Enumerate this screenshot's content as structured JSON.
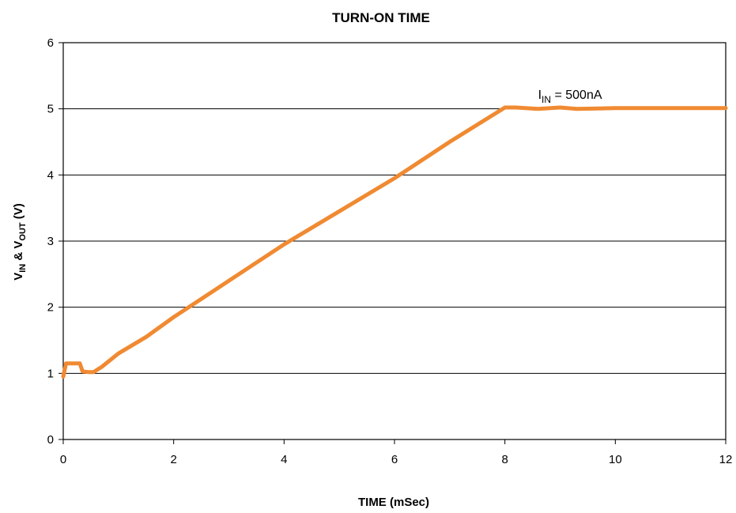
{
  "chart_data": {
    "type": "line",
    "title": "TURN-ON TIME",
    "xlabel": "TIME (mSec)",
    "ylabel": {
      "v1": "V",
      "v1_sub": "IN",
      "amp": " & ",
      "v2": "V",
      "v2_sub": "OUT",
      "unit": " (V)"
    },
    "xlim": [
      0,
      12
    ],
    "ylim": [
      0,
      6
    ],
    "x_ticks": [
      "0",
      "2",
      "4",
      "6",
      "8",
      "10",
      "12"
    ],
    "y_ticks": [
      "0",
      "1",
      "2",
      "3",
      "4",
      "5",
      "6"
    ],
    "grid": "horizontal",
    "series": [
      {
        "color": "#f08a32",
        "x": [
          0.0,
          0.05,
          0.3,
          0.35,
          0.45,
          0.55,
          0.7,
          1.0,
          1.5,
          2.0,
          3.0,
          4.0,
          5.0,
          6.0,
          7.0,
          8.0,
          8.2,
          8.6,
          9.0,
          9.3,
          10.0,
          11.0,
          12.0
        ],
        "y": [
          0.95,
          1.15,
          1.15,
          1.03,
          1.02,
          1.02,
          1.1,
          1.3,
          1.55,
          1.85,
          2.4,
          2.95,
          3.45,
          3.95,
          4.5,
          5.02,
          5.02,
          5.0,
          5.02,
          5.0,
          5.01,
          5.01,
          5.01
        ]
      }
    ],
    "annotations": [
      {
        "text_main": "I",
        "text_sub": "IN",
        "text_rest": " = 500nA",
        "x": 8.6,
        "y": 5.15
      }
    ]
  }
}
